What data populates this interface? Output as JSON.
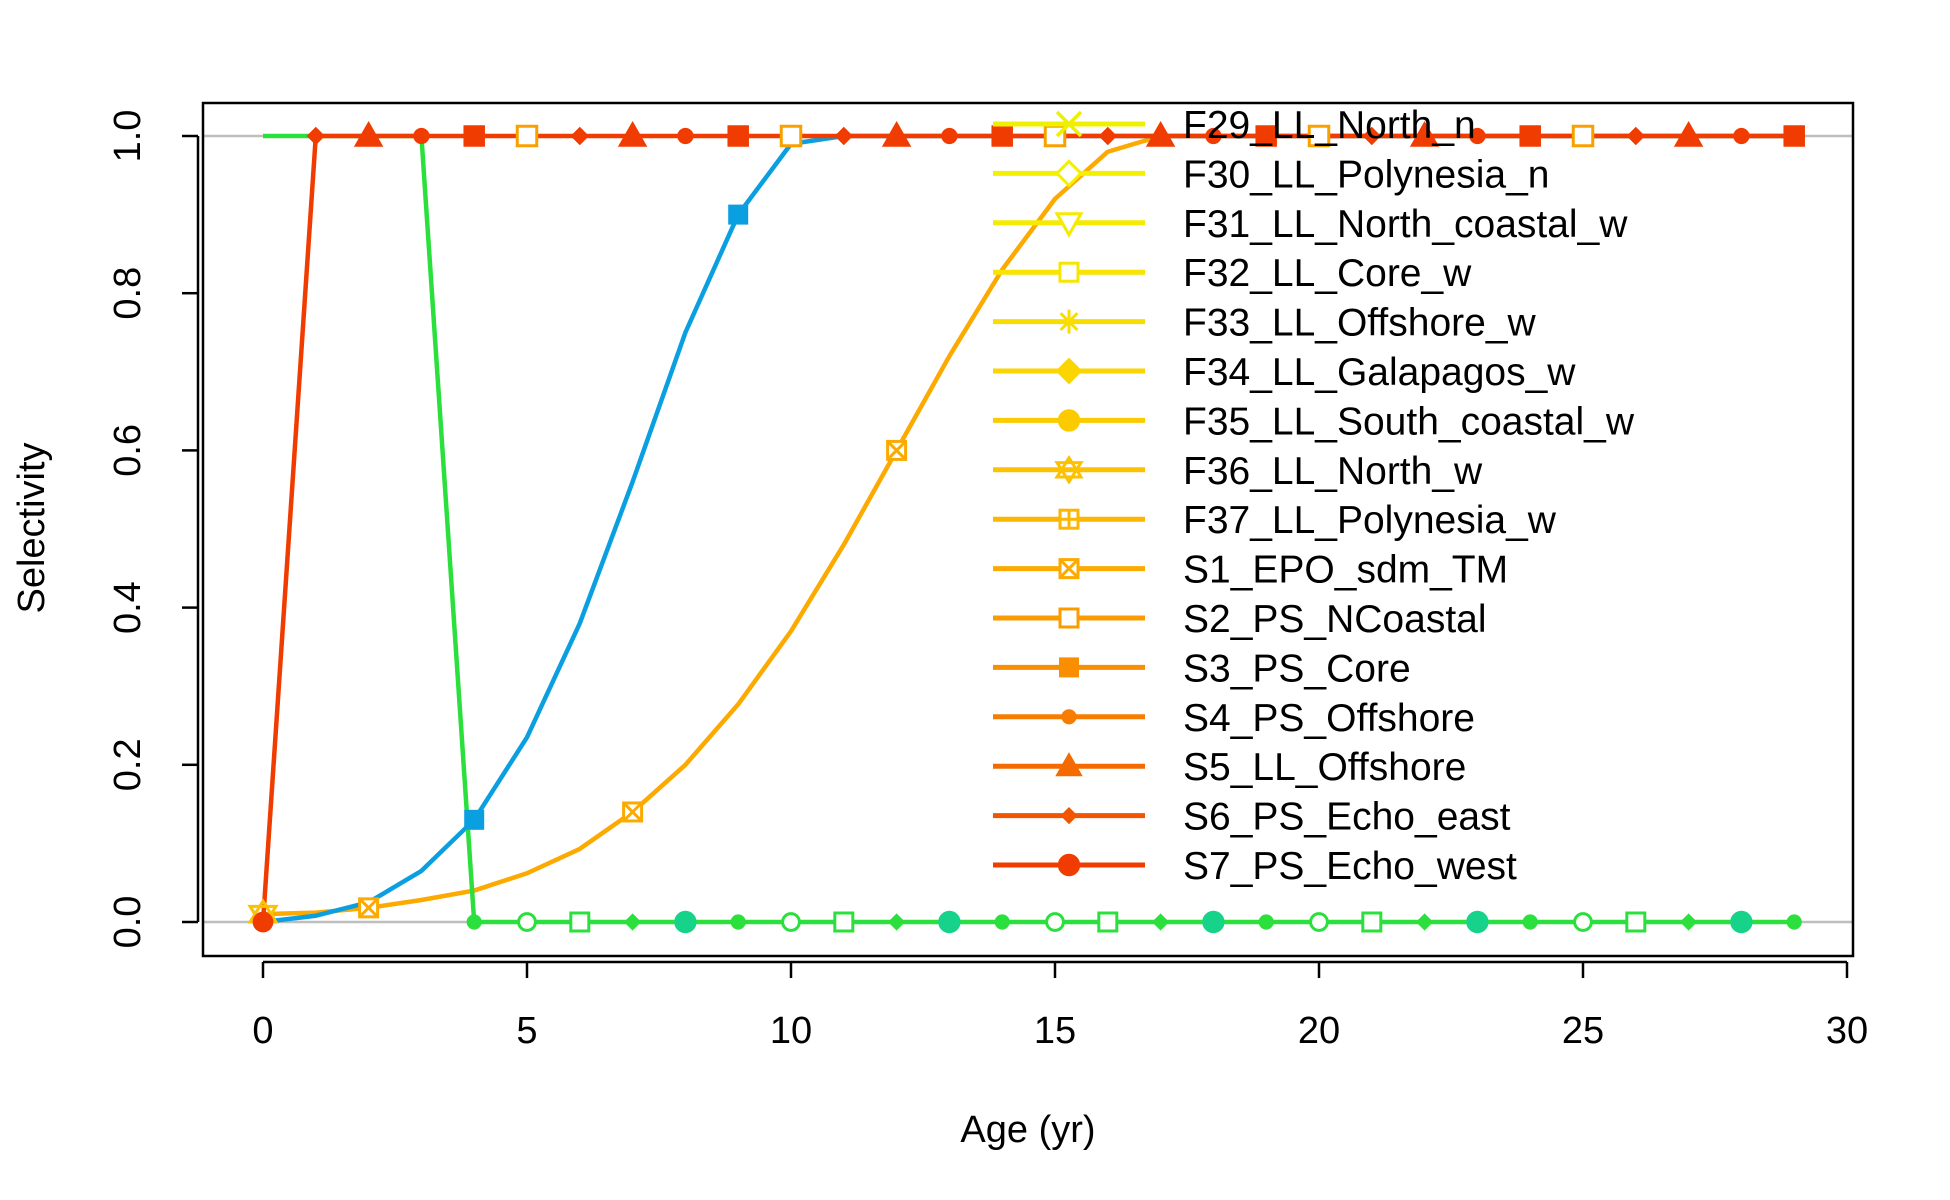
{
  "chart_data": {
    "type": "line",
    "title": "",
    "xlabel": "Age (yr)",
    "ylabel": "Selectivity",
    "xlim": [
      0,
      30
    ],
    "ylim": [
      0,
      1
    ],
    "x_ticks": [
      0,
      5,
      10,
      15,
      20,
      25,
      30
    ],
    "y_ticks": [
      "0.0",
      "0.2",
      "0.4",
      "0.6",
      "0.8",
      "1.0"
    ],
    "grid": false,
    "reference_lines_y": [
      0,
      1
    ],
    "reference_line_color": "#BEBEBE",
    "legend_position": "top-right",
    "legend": [
      {
        "label": "F29_LL_North_n",
        "color": "#EEF000",
        "marker": "x"
      },
      {
        "label": "F30_LL_Polynesia_n",
        "color": "#F3F000",
        "marker": "diamond-open"
      },
      {
        "label": "F31_LL_North_coastal_w",
        "color": "#F5EA00",
        "marker": "triangle-down-open"
      },
      {
        "label": "F32_LL_Core_w",
        "color": "#F7E400",
        "marker": "square-open"
      },
      {
        "label": "F33_LL_Offshore_w",
        "color": "#F9DD00",
        "marker": "asterisk"
      },
      {
        "label": "F34_LL_Galapagos_w",
        "color": "#FAD500",
        "marker": "diamond"
      },
      {
        "label": "F35_LL_South_coastal_w",
        "color": "#FBCB00",
        "marker": "circle"
      },
      {
        "label": "F36_LL_North_w",
        "color": "#FCC100",
        "marker": "star"
      },
      {
        "label": "F37_LL_Polynesia_w",
        "color": "#FCB600",
        "marker": "square-plus"
      },
      {
        "label": "S1_EPO_sdm_TM",
        "color": "#FCAA00",
        "marker": "square-x"
      },
      {
        "label": "S2_PS_NCoastal",
        "color": "#FA9C00",
        "marker": "square-open"
      },
      {
        "label": "S3_PS_Core",
        "color": "#F88E00",
        "marker": "square"
      },
      {
        "label": "S4_PS_Offshore",
        "color": "#F67D00",
        "marker": "circle-small"
      },
      {
        "label": "S5_LL_Offshore",
        "color": "#F46A00",
        "marker": "triangle"
      },
      {
        "label": "S6_PS_Echo_east",
        "color": "#F25500",
        "marker": "diamond-small"
      },
      {
        "label": "S7_PS_Echo_west",
        "color": "#F03C00",
        "marker": "circle"
      }
    ],
    "series": [
      {
        "color": "#F03C00",
        "marker": "mixed",
        "x": [
          0,
          1,
          2,
          3,
          4,
          5,
          6,
          7,
          8,
          9,
          10,
          11,
          12,
          13,
          14,
          15,
          16,
          17,
          18,
          19,
          20,
          21,
          22,
          23,
          24,
          25,
          26,
          27,
          28,
          29
        ],
        "y": [
          0,
          1,
          1,
          1,
          1,
          1,
          1,
          1,
          1,
          1,
          1,
          1,
          1,
          1,
          1,
          1,
          1,
          1,
          1,
          1,
          1,
          1,
          1,
          1,
          1,
          1,
          1,
          1,
          1,
          1
        ]
      },
      {
        "color": "#2BE03C",
        "marker": "mixed",
        "x": [
          0,
          1,
          2,
          3,
          4,
          5,
          6,
          7,
          8,
          9,
          10,
          11,
          12,
          13,
          14,
          15,
          16,
          17,
          18,
          19,
          20,
          21,
          22,
          23,
          24,
          25,
          26,
          27,
          28,
          29
        ],
        "y": [
          1,
          1,
          1,
          1,
          0,
          0,
          0,
          0,
          0,
          0,
          0,
          0,
          0,
          0,
          0,
          0,
          0,
          0,
          0,
          0,
          0,
          0,
          0,
          0,
          0,
          0,
          0,
          0,
          0,
          0
        ]
      },
      {
        "color": "#0A9FE0",
        "marker": "square",
        "x": [
          0,
          1,
          2,
          3,
          4,
          5,
          6,
          7,
          8,
          9,
          10,
          11,
          12,
          13,
          14,
          15,
          16,
          17,
          18,
          19,
          20,
          21,
          22,
          23,
          24,
          25,
          26,
          27,
          28,
          29
        ],
        "y": [
          0,
          0.008,
          0.025,
          0.065,
          0.13,
          0.235,
          0.38,
          0.56,
          0.75,
          0.9,
          0.99,
          1,
          1,
          1,
          1,
          1,
          1,
          1,
          1,
          1,
          1,
          1,
          1,
          1,
          1,
          1,
          1,
          1,
          1,
          1
        ]
      },
      {
        "color": "#FCAA00",
        "marker": "square-x",
        "x": [
          0,
          1,
          2,
          3,
          4,
          5,
          6,
          7,
          8,
          9,
          10,
          11,
          12,
          13,
          14,
          15,
          16,
          17,
          18,
          19,
          20,
          21,
          22,
          23,
          24,
          25,
          26,
          27,
          28,
          29
        ],
        "y": [
          0.01,
          0.012,
          0.018,
          0.028,
          0.04,
          0.062,
          0.093,
          0.14,
          0.2,
          0.277,
          0.37,
          0.48,
          0.6,
          0.72,
          0.83,
          0.92,
          0.98,
          1,
          1,
          1,
          1,
          1,
          1,
          1,
          1,
          1,
          1,
          1,
          1,
          1
        ]
      }
    ]
  }
}
